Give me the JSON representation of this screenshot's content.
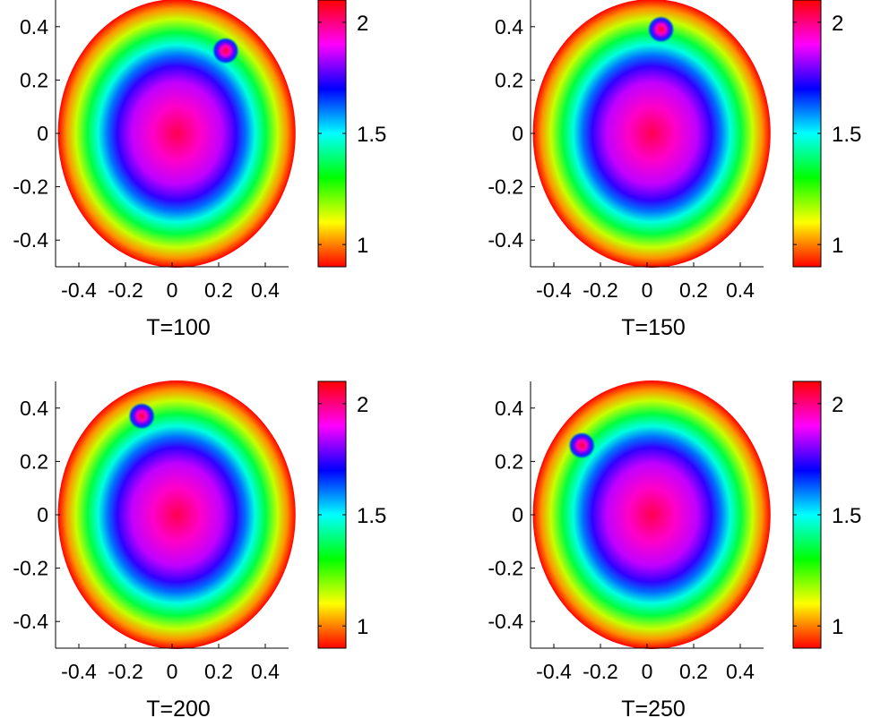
{
  "figure": {
    "colormap": [
      "#ff0000",
      "#ffff00",
      "#00ff00",
      "#00ffff",
      "#0000ff",
      "#ff00ff",
      "#ff0000"
    ],
    "panel_background": "#ffffff"
  },
  "chart_data": [
    {
      "type": "heatmap",
      "xlabel": "T=100",
      "x_ticks": [
        "-0.4",
        "-0.2",
        "0",
        "0.2",
        "0.4"
      ],
      "y_ticks": [
        "0.4",
        "0.2",
        "0",
        "-0.2",
        "-0.4"
      ],
      "xlim": [
        -0.5,
        0.5
      ],
      "ylim": [
        -0.5,
        0.5
      ],
      "colorbar": {
        "range": [
          0.9,
          2.1
        ],
        "ticks": [
          "2",
          "1.5",
          "1"
        ]
      },
      "spot": {
        "x": 0.23,
        "y": 0.31
      },
      "center_value": 2.05,
      "edge_value": 0.9
    },
    {
      "type": "heatmap",
      "xlabel": "T=150",
      "x_ticks": [
        "-0.4",
        "-0.2",
        "0",
        "0.2",
        "0.4"
      ],
      "y_ticks": [
        "0.4",
        "0.2",
        "0",
        "-0.2",
        "-0.4"
      ],
      "xlim": [
        -0.5,
        0.5
      ],
      "ylim": [
        -0.5,
        0.5
      ],
      "colorbar": {
        "range": [
          0.9,
          2.1
        ],
        "ticks": [
          "2",
          "1.5",
          "1"
        ]
      },
      "spot": {
        "x": 0.06,
        "y": 0.39
      },
      "center_value": 2.05,
      "edge_value": 0.9
    },
    {
      "type": "heatmap",
      "xlabel": "T=200",
      "x_ticks": [
        "-0.4",
        "-0.2",
        "0",
        "0.2",
        "0.4"
      ],
      "y_ticks": [
        "0.4",
        "0.2",
        "0",
        "-0.2",
        "-0.4"
      ],
      "xlim": [
        -0.5,
        0.5
      ],
      "ylim": [
        -0.5,
        0.5
      ],
      "colorbar": {
        "range": [
          0.9,
          2.1
        ],
        "ticks": [
          "2",
          "1.5",
          "1"
        ]
      },
      "spot": {
        "x": -0.13,
        "y": 0.37
      },
      "center_value": 2.05,
      "edge_value": 0.9
    },
    {
      "type": "heatmap",
      "xlabel": "T=250",
      "x_ticks": [
        "-0.4",
        "-0.2",
        "0",
        "0.2",
        "0.4"
      ],
      "y_ticks": [
        "0.4",
        "0.2",
        "0",
        "-0.2",
        "-0.4"
      ],
      "xlim": [
        -0.5,
        0.5
      ],
      "ylim": [
        -0.5,
        0.5
      ],
      "colorbar": {
        "range": [
          0.9,
          2.1
        ],
        "ticks": [
          "2",
          "1.5",
          "1"
        ]
      },
      "spot": {
        "x": -0.28,
        "y": 0.26
      },
      "center_value": 2.05,
      "edge_value": 0.9
    }
  ]
}
